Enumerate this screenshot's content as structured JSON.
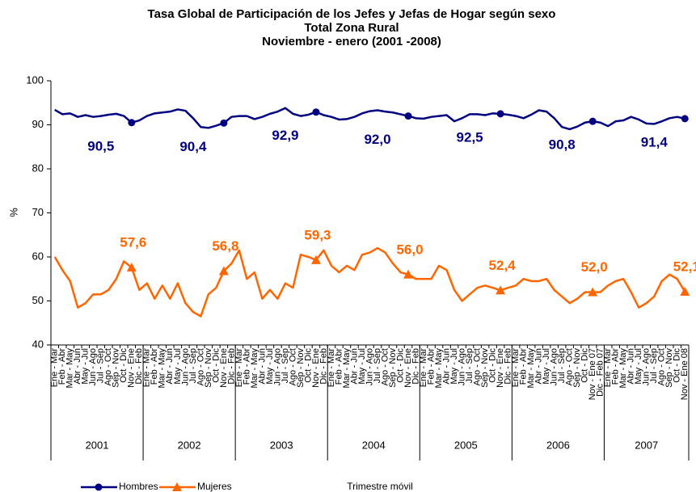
{
  "chart_data": {
    "type": "line",
    "title": [
      "Tasa Global de Participación de los Jefes y Jefas de Hogar según sexo",
      "Total Zona Rural",
      "Noviembre  - enero (2001 -2008)"
    ],
    "y_label": "%",
    "x_label": "Trimestre móvil",
    "categories": [
      "Ene - Mar",
      "Feb - Abr",
      "Mar - May",
      "Abr - Jun",
      "May - Jul",
      "Jun - Ago",
      "Jul - Sep",
      "Ago - Oct",
      "Sep - Nov",
      "Oct - Dic",
      "Nov - Ene",
      "Dic - Feb",
      "Ene - Mar",
      "Feb - Abr",
      "Mar - May",
      "Abr - Jun",
      "May - Jul",
      "Jun - Ago",
      "Jul - Sep",
      "Ago - Oct",
      "Sep - Nov",
      "Oct - Dic",
      "Nov - Ene",
      "Dic - Feb",
      "Ene - Mar",
      "Feb - Abr",
      "Mar - May",
      "Abr - Jun",
      "May - Jul",
      "Jun - Ago",
      "Jul - Sep",
      "Ago - Oct",
      "Sep - Nov",
      "Oct - Dic",
      "Nov - Ene",
      "Dic - Feb",
      "Ene - Mar",
      "Feb - Abr",
      "Mar - May",
      "Abr - Jun",
      "May - Jul",
      "Jun - Ago",
      "Jul - Sep",
      "Ago - Oct",
      "Sep - Nov",
      "Oct - Dic",
      "Nov - Ene",
      "Dic - Feb",
      "Ene - Mar",
      "Feb - Abr",
      "Mar - May",
      "Abr - Jun",
      "May - Jul",
      "Jun - Ago",
      "Jul - Sep",
      "Ago - Oct",
      "Sep - Nov",
      "Oct - Dic",
      "Nov - Ene",
      "Dic - Feb",
      "Ene - Mar",
      "Feb - Abr",
      "Mar - May",
      "Abr - Jun",
      "May - Jul",
      "Jun - Ago",
      "Jul - Sep",
      "Ago - Oct",
      "Sep - Nov",
      "Oct - Dic",
      "Nov - Ene 07",
      "Dic - Feb 07",
      "Ene - Mar",
      "Feb - Abr",
      "Mar - May",
      "Abr - Jun",
      "May - Jul",
      "Jun - Ago",
      "Jul - Sep",
      "Ago - Oct",
      "Sep - Nov",
      "Oct - Dic",
      "Nov - Ene 08"
    ],
    "category_groups": [
      "2001",
      "2002",
      "2003",
      "2004",
      "2005",
      "2006",
      "2007"
    ],
    "series": [
      {
        "name": "Hombres",
        "color": "#000080",
        "marker": "circle",
        "values": [
          93.4,
          92.4,
          92.6,
          91.8,
          92.2,
          91.8,
          92.0,
          92.3,
          92.5,
          92.0,
          90.5,
          91.0,
          92.0,
          92.6,
          92.8,
          93.0,
          93.5,
          93.2,
          91.5,
          89.5,
          89.3,
          89.8,
          90.4,
          91.8,
          92.0,
          92.0,
          91.3,
          91.8,
          92.5,
          93.0,
          93.8,
          92.5,
          92.0,
          92.3,
          92.9,
          92.2,
          91.8,
          91.2,
          91.3,
          91.8,
          92.6,
          93.1,
          93.3,
          93.0,
          92.8,
          92.4,
          92.0,
          91.5,
          91.4,
          91.8,
          92.0,
          92.2,
          90.8,
          91.5,
          92.4,
          92.4,
          92.2,
          92.6,
          92.5,
          92.3,
          92.0,
          91.5,
          92.3,
          93.3,
          93.0,
          91.5,
          89.5,
          89.0,
          89.6,
          90.5,
          90.8,
          90.5,
          89.7,
          90.8,
          91.0,
          91.8,
          91.2,
          90.3,
          90.2,
          90.8,
          91.5,
          91.8,
          91.4
        ],
        "value_labels": [
          null,
          null,
          null,
          null,
          null,
          null,
          null,
          null,
          null,
          null,
          "90,5",
          null,
          null,
          null,
          null,
          null,
          null,
          null,
          null,
          null,
          null,
          null,
          "90,4",
          null,
          null,
          null,
          null,
          null,
          null,
          null,
          null,
          null,
          null,
          null,
          "92,9",
          null,
          null,
          null,
          null,
          null,
          null,
          null,
          null,
          null,
          null,
          null,
          "92,0",
          null,
          null,
          null,
          null,
          null,
          null,
          null,
          null,
          null,
          null,
          null,
          "92,5",
          null,
          null,
          null,
          null,
          null,
          null,
          null,
          null,
          null,
          null,
          null,
          "90,8",
          null,
          null,
          null,
          null,
          null,
          null,
          null,
          null,
          null,
          null,
          null,
          "91,4"
        ]
      },
      {
        "name": "Mujeres",
        "color": "#ff6600",
        "marker": "triangle",
        "values": [
          60.0,
          57.0,
          54.5,
          48.5,
          49.5,
          51.5,
          51.5,
          52.5,
          55.0,
          59.0,
          57.6,
          52.5,
          54.0,
          50.5,
          53.5,
          50.5,
          54.0,
          49.5,
          47.5,
          46.5,
          51.5,
          53.0,
          56.8,
          58.5,
          61.5,
          55.0,
          56.5,
          50.5,
          52.5,
          50.5,
          54.0,
          53.0,
          60.5,
          60.0,
          59.3,
          61.5,
          58.0,
          56.5,
          58.0,
          57.0,
          60.5,
          61.0,
          62.0,
          61.0,
          58.5,
          56.5,
          56.0,
          55.0,
          55.0,
          55.0,
          58.0,
          57.0,
          52.5,
          50.0,
          51.5,
          53.0,
          53.5,
          53.0,
          52.4,
          53.0,
          53.5,
          55.0,
          54.5,
          54.5,
          55.0,
          52.5,
          51.0,
          49.5,
          50.5,
          52.0,
          52.0,
          52.0,
          53.5,
          54.5,
          55.0,
          52.0,
          48.5,
          49.5,
          51.0,
          54.5,
          56.0,
          55.0,
          52.1
        ],
        "value_labels": [
          null,
          null,
          null,
          null,
          null,
          null,
          null,
          null,
          null,
          null,
          "57,6",
          null,
          null,
          null,
          null,
          null,
          null,
          null,
          null,
          null,
          null,
          null,
          "56,8",
          null,
          null,
          null,
          null,
          null,
          null,
          null,
          null,
          null,
          null,
          null,
          "59,3",
          null,
          null,
          null,
          null,
          null,
          null,
          null,
          null,
          null,
          null,
          null,
          "56,0",
          null,
          null,
          null,
          null,
          null,
          null,
          null,
          null,
          null,
          null,
          null,
          "52,4",
          null,
          null,
          null,
          null,
          null,
          null,
          null,
          null,
          null,
          null,
          null,
          "52,0",
          null,
          null,
          null,
          null,
          null,
          null,
          null,
          null,
          null,
          null,
          null,
          "52,1"
        ]
      }
    ],
    "ylim": [
      40,
      100
    ],
    "yticks": [
      40,
      50,
      60,
      70,
      80,
      90,
      100
    ],
    "grid": false,
    "legend": "bottom-left"
  }
}
